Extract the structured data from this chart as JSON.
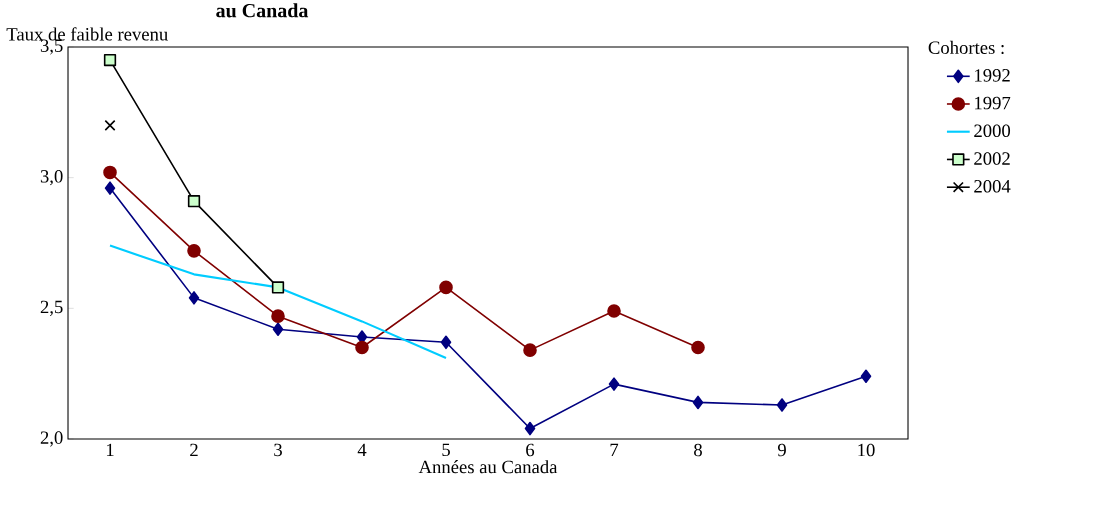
{
  "chart_data": {
    "type": "line",
    "title": "au Canada",
    "xlabel": "Années au Canada",
    "ylabel": "Taux de faible revenu",
    "legend_title": "Cohortes :",
    "categories": [
      "1",
      "2",
      "3",
      "4",
      "5",
      "6",
      "7",
      "8",
      "9",
      "10"
    ],
    "series": [
      {
        "name": "1992",
        "color": "#000080",
        "marker": "diamond",
        "values": [
          2.96,
          2.54,
          2.42,
          2.39,
          2.37,
          2.04,
          2.21,
          2.14,
          2.13,
          2.24
        ]
      },
      {
        "name": "1997",
        "color": "#800000",
        "marker": "circle",
        "values": [
          3.02,
          2.72,
          2.47,
          2.35,
          2.58,
          2.34,
          2.49,
          2.35,
          null,
          null
        ]
      },
      {
        "name": "2000",
        "color": "#00ccff",
        "marker": "none",
        "values": [
          2.74,
          2.63,
          2.58,
          2.45,
          2.31,
          null,
          null,
          null,
          null,
          null
        ]
      },
      {
        "name": "2002",
        "color": "#000000",
        "marker": "square",
        "values": [
          3.45,
          2.91,
          2.58,
          null,
          null,
          null,
          null,
          null,
          null,
          null
        ]
      },
      {
        "name": "2004",
        "color": "#000000",
        "marker": "cross",
        "values": [
          3.2,
          null,
          null,
          null,
          null,
          null,
          null,
          null,
          null,
          null
        ]
      }
    ],
    "ylim": [
      2.0,
      3.5
    ],
    "yticks": [
      {
        "value": 2.0,
        "label": "2,0"
      },
      {
        "value": 2.5,
        "label": "2,5"
      },
      {
        "value": 3.0,
        "label": "3,0"
      },
      {
        "value": 3.5,
        "label": "3,5"
      }
    ],
    "grid": false,
    "legend": "right",
    "line_style": "solid"
  }
}
